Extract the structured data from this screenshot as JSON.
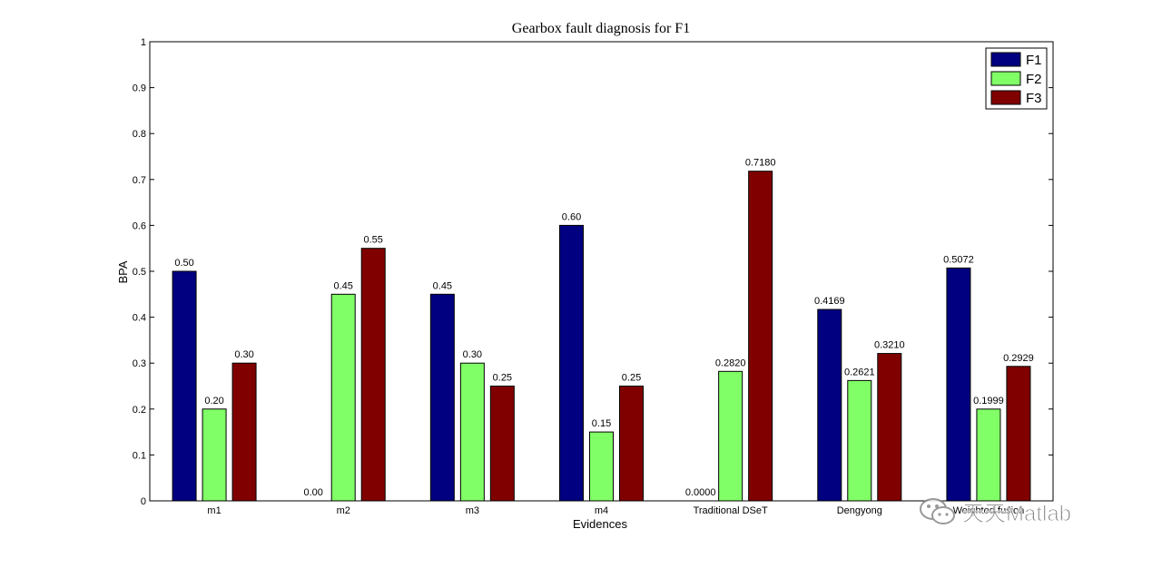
{
  "chart_data": {
    "type": "bar",
    "title": "Gearbox fault diagnosis for F1",
    "xlabel": "Evidences",
    "ylabel": "BPA",
    "ylim": [
      0,
      1
    ],
    "yticks": [
      "0",
      "0.1",
      "0.2",
      "0.3",
      "0.4",
      "0.5",
      "0.6",
      "0.7",
      "0.8",
      "0.9",
      "1"
    ],
    "categories": [
      "m1",
      "m2",
      "m3",
      "m4",
      "Traditional DSeT",
      "Dengyong",
      "Weighted fusion"
    ],
    "series": [
      {
        "name": "F1",
        "color": "#000080",
        "values": [
          0.5,
          0.0,
          0.45,
          0.6,
          0.0,
          0.4169,
          0.5072
        ],
        "labels": [
          "0.50",
          "0.00",
          "0.45",
          "0.60",
          "0.0000",
          "0.4169",
          "0.5072"
        ]
      },
      {
        "name": "F2",
        "color": "#80FF66",
        "values": [
          0.2,
          0.45,
          0.3,
          0.15,
          0.282,
          0.2621,
          0.1999
        ],
        "labels": [
          "0.20",
          "0.45",
          "0.30",
          "0.15",
          "0.2820",
          "0.2621",
          "0.1999"
        ]
      },
      {
        "name": "F3",
        "color": "#800000",
        "values": [
          0.3,
          0.55,
          0.25,
          0.25,
          0.718,
          0.321,
          0.2929
        ],
        "labels": [
          "0.30",
          "0.55",
          "0.25",
          "0.25",
          "0.7180",
          "0.3210",
          "0.2929"
        ]
      }
    ],
    "legend": "top-right",
    "grid": false
  },
  "watermark": {
    "text": "天天Matlab",
    "icon": "wechat-icon"
  }
}
